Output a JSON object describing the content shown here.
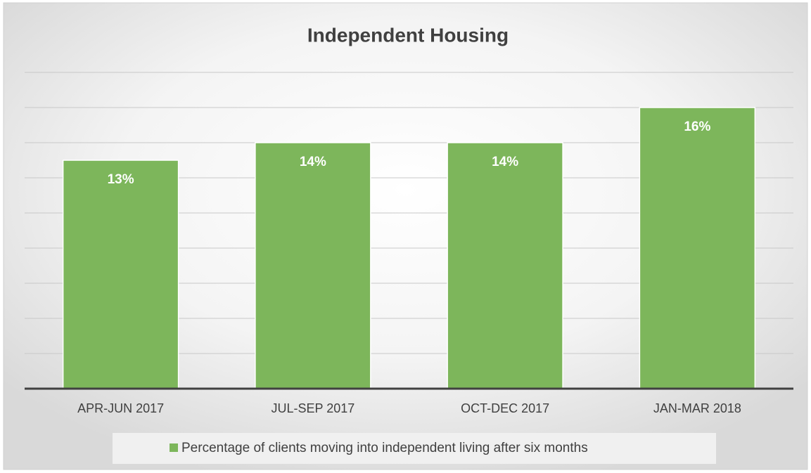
{
  "chart_data": {
    "type": "bar",
    "title": "Independent Housing",
    "categories": [
      "APR-JUN 2017",
      "JUL-SEP 2017",
      "OCT-DEC 2017",
      "JAN-MAR 2018"
    ],
    "series": [
      {
        "name": "Percentage of clients moving into independent living after six months",
        "color": "#7db65b",
        "values": [
          13,
          14,
          14,
          16
        ],
        "value_labels": [
          "13%",
          "14%",
          "14%",
          "16%"
        ]
      }
    ],
    "ylim": [
      0,
      18
    ],
    "yticks": [
      0,
      2,
      4,
      6,
      8,
      10,
      12,
      14,
      16,
      18
    ],
    "grid": true,
    "legend": "bottom"
  }
}
